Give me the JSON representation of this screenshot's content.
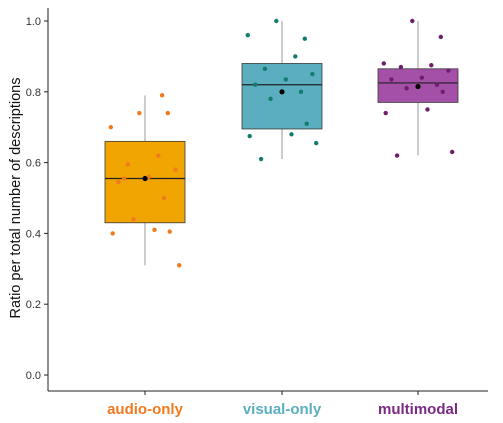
{
  "chart_data": {
    "type": "box",
    "title": "",
    "xlabel": "",
    "ylabel": "Ratio per total number of descriptions",
    "ylim": [
      0.0,
      1.0
    ],
    "yticks": [
      "0.0",
      "0.2",
      "0.4",
      "0.6",
      "0.8",
      "1.0"
    ],
    "grid": false,
    "legend": "none",
    "categories": [
      "audio-only",
      "visual-only",
      "multimodal"
    ],
    "colors": {
      "audio-only": {
        "fill": "#f0a500",
        "point": "#f07a1e",
        "label": "#f07a1e"
      },
      "visual-only": {
        "fill": "#5aaebf",
        "point": "#137c6e",
        "label": "#5aaebf"
      },
      "multimodal": {
        "fill": "#a450a8",
        "point": "#6e1e6e",
        "label": "#7a2a82"
      }
    },
    "boxes": [
      {
        "category": "audio-only",
        "q1": 0.43,
        "median": 0.555,
        "q3": 0.66,
        "whisker_low": 0.31,
        "whisker_high": 0.79,
        "mean": 0.555,
        "points": [
          0.555,
          0.31,
          0.4,
          0.41,
          0.405,
          0.44,
          0.5,
          0.545,
          0.56,
          0.58,
          0.595,
          0.62,
          0.7,
          0.74,
          0.74,
          0.79
        ]
      },
      {
        "category": "visual-only",
        "q1": 0.695,
        "median": 0.82,
        "q3": 0.88,
        "whisker_low": 0.61,
        "whisker_high": 1.0,
        "mean": 0.8,
        "points": [
          0.61,
          0.655,
          0.675,
          0.68,
          0.71,
          0.78,
          0.8,
          0.82,
          0.835,
          0.85,
          0.865,
          0.9,
          0.96,
          0.95,
          1.0
        ]
      },
      {
        "category": "multimodal",
        "q1": 0.77,
        "median": 0.825,
        "q3": 0.865,
        "whisker_low": 0.62,
        "whisker_high": 1.0,
        "mean": 0.815,
        "points": [
          0.62,
          0.63,
          0.74,
          0.75,
          0.8,
          0.81,
          0.82,
          0.835,
          0.84,
          0.86,
          0.87,
          0.875,
          0.88,
          0.955,
          1.0
        ]
      }
    ]
  }
}
